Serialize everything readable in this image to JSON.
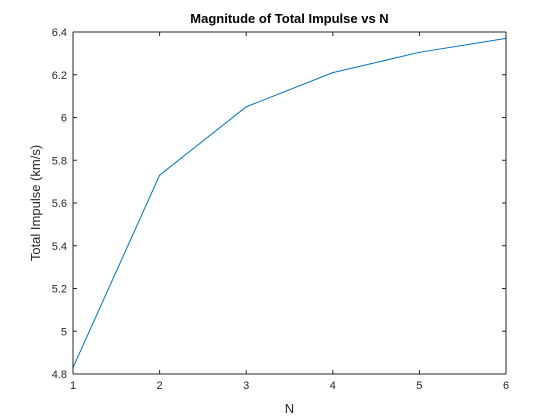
{
  "chart_data": {
    "type": "line",
    "title": "Magnitude of Total Impulse vs N",
    "xlabel": "N",
    "ylabel": "Total Impulse (km/s)",
    "xlim": [
      1,
      6
    ],
    "ylim": [
      4.8,
      6.4
    ],
    "x_ticks": [
      "1",
      "2",
      "3",
      "4",
      "5",
      "6"
    ],
    "y_ticks": [
      "4.8",
      "5",
      "5.2",
      "5.4",
      "5.6",
      "5.8",
      "6",
      "6.2",
      "6.4"
    ],
    "grid": false,
    "series": [
      {
        "color": "#0072bd",
        "x": [
          1,
          2,
          3,
          4,
          5,
          6
        ],
        "y": [
          4.83,
          5.73,
          6.05,
          6.21,
          6.305,
          6.37
        ]
      }
    ]
  }
}
